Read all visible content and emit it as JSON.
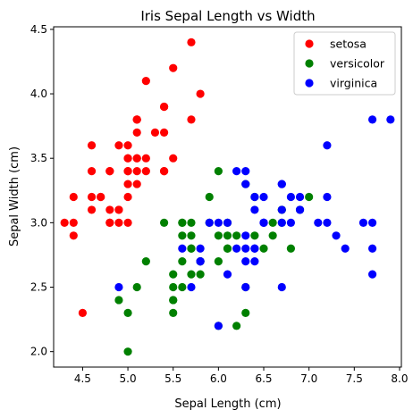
{
  "chart_data": {
    "type": "scatter",
    "title": "Iris Sepal Length vs Width",
    "xlabel": "Sepal Length (cm)",
    "ylabel": "Sepal Width (cm)",
    "xlim": [
      4.18,
      8.02
    ],
    "ylim": [
      1.88,
      4.52
    ],
    "xticks": [
      4.5,
      5.0,
      5.5,
      6.0,
      6.5,
      7.0,
      7.5,
      8.0
    ],
    "xtick_labels": [
      "4.5",
      "5.0",
      "5.5",
      "6.0",
      "6.5",
      "7.0",
      "7.5",
      "8.0"
    ],
    "yticks": [
      2.0,
      2.5,
      3.0,
      3.5,
      4.0,
      4.5
    ],
    "ytick_labels": [
      "2.0",
      "2.5",
      "3.0",
      "3.5",
      "4.0",
      "4.5"
    ],
    "grid": false,
    "legend_position": "top-right",
    "series": [
      {
        "name": "setosa",
        "color": "#ff0000",
        "points": [
          [
            5.1,
            3.5
          ],
          [
            4.9,
            3.0
          ],
          [
            4.7,
            3.2
          ],
          [
            4.6,
            3.1
          ],
          [
            5.0,
            3.6
          ],
          [
            5.4,
            3.9
          ],
          [
            4.6,
            3.4
          ],
          [
            5.0,
            3.4
          ],
          [
            4.4,
            2.9
          ],
          [
            4.9,
            3.1
          ],
          [
            5.4,
            3.7
          ],
          [
            4.8,
            3.4
          ],
          [
            4.8,
            3.0
          ],
          [
            4.3,
            3.0
          ],
          [
            5.8,
            4.0
          ],
          [
            5.7,
            4.4
          ],
          [
            5.4,
            3.9
          ],
          [
            5.1,
            3.5
          ],
          [
            5.7,
            3.8
          ],
          [
            5.1,
            3.8
          ],
          [
            5.4,
            3.4
          ],
          [
            5.1,
            3.7
          ],
          [
            4.6,
            3.6
          ],
          [
            5.1,
            3.3
          ],
          [
            4.8,
            3.4
          ],
          [
            5.0,
            3.0
          ],
          [
            5.0,
            3.4
          ],
          [
            5.2,
            3.5
          ],
          [
            5.2,
            3.4
          ],
          [
            4.7,
            3.2
          ],
          [
            4.8,
            3.1
          ],
          [
            5.4,
            3.4
          ],
          [
            5.2,
            4.1
          ],
          [
            5.5,
            4.2
          ],
          [
            4.9,
            3.1
          ],
          [
            5.0,
            3.2
          ],
          [
            5.5,
            3.5
          ],
          [
            4.9,
            3.6
          ],
          [
            4.4,
            3.0
          ],
          [
            5.1,
            3.4
          ],
          [
            5.0,
            3.5
          ],
          [
            4.5,
            2.3
          ],
          [
            4.4,
            3.2
          ],
          [
            5.0,
            3.5
          ],
          [
            5.1,
            3.8
          ],
          [
            4.8,
            3.0
          ],
          [
            5.1,
            3.8
          ],
          [
            4.6,
            3.2
          ],
          [
            5.3,
            3.7
          ],
          [
            5.0,
            3.3
          ]
        ]
      },
      {
        "name": "versicolor",
        "color": "#008000",
        "points": [
          [
            7.0,
            3.2
          ],
          [
            6.4,
            3.2
          ],
          [
            6.9,
            3.1
          ],
          [
            5.5,
            2.3
          ],
          [
            6.5,
            2.8
          ],
          [
            5.7,
            2.8
          ],
          [
            6.3,
            3.3
          ],
          [
            4.9,
            2.4
          ],
          [
            6.6,
            2.9
          ],
          [
            5.2,
            2.7
          ],
          [
            5.0,
            2.0
          ],
          [
            5.9,
            3.0
          ],
          [
            6.0,
            2.2
          ],
          [
            6.1,
            2.9
          ],
          [
            5.6,
            2.9
          ],
          [
            6.7,
            3.1
          ],
          [
            5.6,
            3.0
          ],
          [
            5.8,
            2.7
          ],
          [
            6.2,
            2.2
          ],
          [
            5.6,
            2.5
          ],
          [
            5.9,
            3.2
          ],
          [
            6.1,
            2.8
          ],
          [
            6.3,
            2.5
          ],
          [
            6.1,
            2.8
          ],
          [
            6.4,
            2.9
          ],
          [
            6.6,
            3.0
          ],
          [
            6.8,
            2.8
          ],
          [
            6.7,
            3.0
          ],
          [
            6.0,
            2.9
          ],
          [
            5.7,
            2.6
          ],
          [
            5.5,
            2.4
          ],
          [
            5.5,
            2.4
          ],
          [
            5.8,
            2.7
          ],
          [
            6.0,
            2.7
          ],
          [
            5.4,
            3.0
          ],
          [
            6.0,
            3.4
          ],
          [
            6.7,
            3.1
          ],
          [
            6.3,
            2.3
          ],
          [
            5.6,
            3.0
          ],
          [
            5.5,
            2.5
          ],
          [
            5.5,
            2.6
          ],
          [
            6.1,
            3.0
          ],
          [
            5.8,
            2.6
          ],
          [
            5.0,
            2.3
          ],
          [
            5.6,
            2.7
          ],
          [
            5.7,
            3.0
          ],
          [
            5.7,
            2.9
          ],
          [
            6.2,
            2.9
          ],
          [
            5.1,
            2.5
          ],
          [
            5.7,
            2.8
          ]
        ]
      },
      {
        "name": "virginica",
        "color": "#0000ff",
        "points": [
          [
            6.3,
            3.3
          ],
          [
            5.8,
            2.7
          ],
          [
            7.1,
            3.0
          ],
          [
            6.3,
            2.9
          ],
          [
            6.5,
            3.0
          ],
          [
            7.6,
            3.0
          ],
          [
            4.9,
            2.5
          ],
          [
            7.3,
            2.9
          ],
          [
            6.7,
            2.5
          ],
          [
            7.2,
            3.6
          ],
          [
            6.5,
            3.2
          ],
          [
            6.4,
            2.7
          ],
          [
            6.8,
            3.0
          ],
          [
            5.7,
            2.5
          ],
          [
            5.8,
            2.8
          ],
          [
            6.4,
            3.2
          ],
          [
            6.5,
            3.0
          ],
          [
            7.7,
            3.8
          ],
          [
            7.7,
            2.6
          ],
          [
            6.0,
            2.2
          ],
          [
            6.9,
            3.2
          ],
          [
            5.6,
            2.8
          ],
          [
            7.7,
            2.8
          ],
          [
            6.3,
            2.7
          ],
          [
            6.7,
            3.3
          ],
          [
            7.2,
            3.2
          ],
          [
            6.2,
            2.8
          ],
          [
            6.1,
            3.0
          ],
          [
            6.4,
            2.8
          ],
          [
            7.2,
            3.0
          ],
          [
            7.4,
            2.8
          ],
          [
            7.9,
            3.8
          ],
          [
            6.4,
            2.8
          ],
          [
            6.3,
            2.8
          ],
          [
            6.1,
            2.6
          ],
          [
            7.7,
            3.0
          ],
          [
            6.3,
            3.4
          ],
          [
            6.4,
            3.1
          ],
          [
            6.0,
            3.0
          ],
          [
            6.9,
            3.1
          ],
          [
            6.7,
            3.1
          ],
          [
            6.9,
            3.1
          ],
          [
            5.8,
            2.7
          ],
          [
            6.8,
            3.2
          ],
          [
            6.7,
            3.3
          ],
          [
            6.7,
            3.0
          ],
          [
            6.3,
            2.5
          ],
          [
            6.5,
            3.0
          ],
          [
            6.2,
            3.4
          ],
          [
            5.9,
            3.0
          ]
        ]
      }
    ]
  }
}
